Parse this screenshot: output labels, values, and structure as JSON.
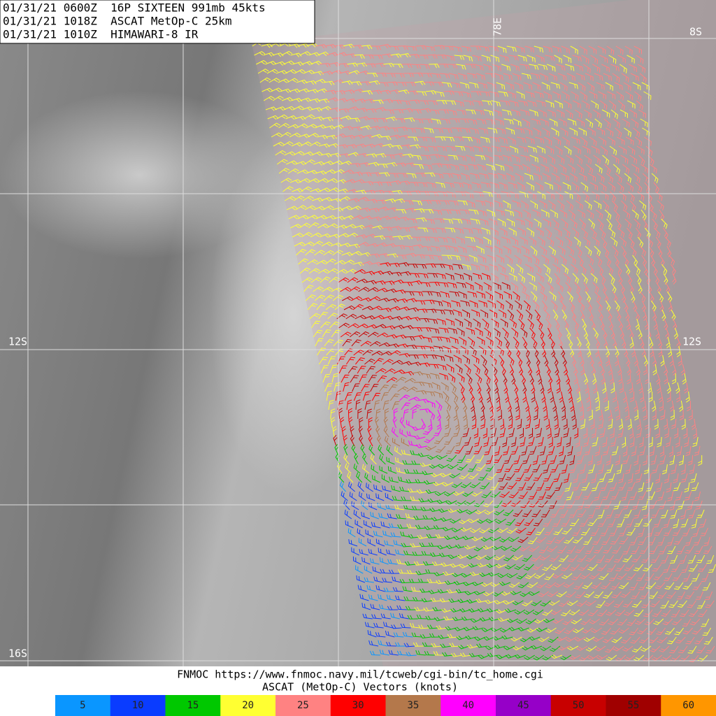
{
  "header": {
    "lines": [
      "01/31/21 0600Z  16P SIXTEEN 991mb 45kts",
      "01/31/21 1018Z  ASCAT MetOp-C 25km",
      "01/31/21 1010Z  HIMAWARI-8 IR"
    ]
  },
  "map": {
    "lat_labels": [
      "8S",
      "12S",
      "12S",
      "16S"
    ],
    "lon_label": "78E"
  },
  "footer": {
    "source": "FNMOC https://www.fnmoc.navy.mil/tcweb/cgi-bin/tc_home.cgi",
    "caption": "ASCAT (MetOp-C) Vectors (knots)"
  },
  "legend": {
    "items": [
      {
        "label": "5",
        "color": "#0a96ff"
      },
      {
        "label": "10",
        "color": "#0a3cff"
      },
      {
        "label": "15",
        "color": "#00c800"
      },
      {
        "label": "20",
        "color": "#ffff32"
      },
      {
        "label": "25",
        "color": "#ff8282"
      },
      {
        "label": "30",
        "color": "#ff0000"
      },
      {
        "label": "35",
        "color": "#b4784b"
      },
      {
        "label": "40",
        "color": "#ff00ff"
      },
      {
        "label": "45",
        "color": "#9600c8"
      },
      {
        "label": "50",
        "color": "#c80000"
      },
      {
        "label": "55",
        "color": "#a00000"
      },
      {
        "label": "60",
        "color": "#ff9600"
      }
    ]
  }
}
